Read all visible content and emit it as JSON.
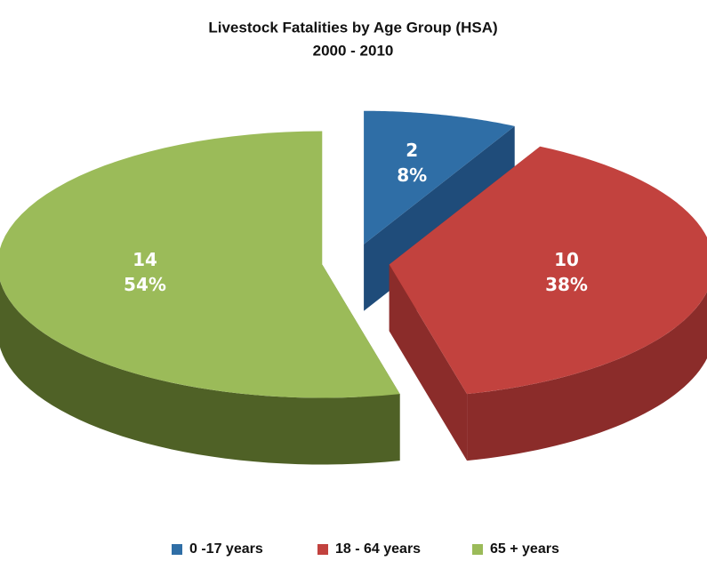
{
  "chart_data": {
    "type": "pie3d",
    "title": "Livestock Fatalities by Age Group (HSA)",
    "subtitle": "2000 - 2010",
    "categories": [
      "0 -17 years",
      "18 - 64 years",
      "65 + years"
    ],
    "values": [
      2,
      10,
      14
    ],
    "percent_labels": [
      "8%",
      "38%",
      "54%"
    ],
    "colors": [
      "#2f6ea6",
      "#c2423e",
      "#9bbb59"
    ],
    "side_colors": [
      "#1f4c7a",
      "#8b2c2a",
      "#4f6126"
    ],
    "legend": "bottom"
  }
}
